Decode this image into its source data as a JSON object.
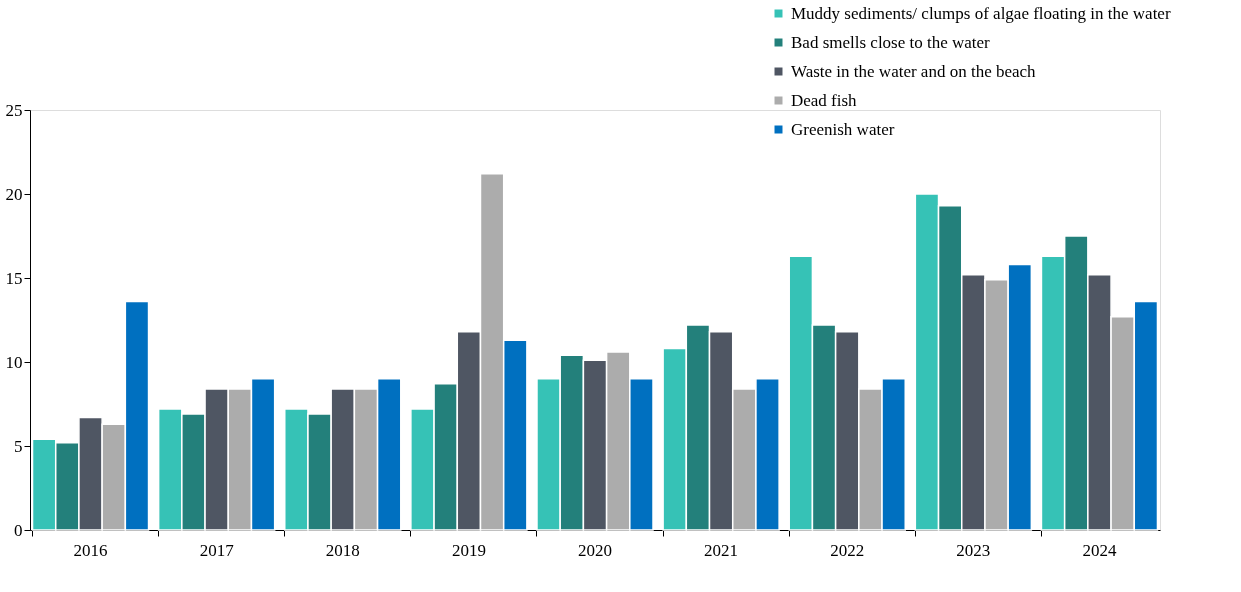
{
  "chart_data": {
    "type": "bar",
    "categories": [
      "2016",
      "2017",
      "2018",
      "2019",
      "2020",
      "2021",
      "2022",
      "2023",
      "2024"
    ],
    "series": [
      {
        "name": "Muddy sediments/ clumps of algae floating in the water",
        "color": "#36c2b6",
        "values": [
          5.4,
          7.2,
          7.2,
          7.2,
          9.0,
          10.8,
          16.3,
          20.0,
          16.3
        ]
      },
      {
        "name": "Bad smells close to the water",
        "color": "#23807b",
        "values": [
          5.2,
          6.9,
          6.9,
          8.7,
          10.4,
          12.2,
          12.2,
          19.3,
          17.5
        ]
      },
      {
        "name": "Waste in the water and on the beach",
        "color": "#4f5663",
        "values": [
          6.7,
          8.4,
          8.4,
          11.8,
          10.1,
          11.8,
          11.8,
          15.2,
          15.2
        ]
      },
      {
        "name": "Dead fish",
        "color": "#acacac",
        "values": [
          6.3,
          8.4,
          8.4,
          21.2,
          10.6,
          8.4,
          8.4,
          14.9,
          12.7
        ]
      },
      {
        "name": "Greenish water",
        "color": "#0070c0",
        "values": [
          13.6,
          9.0,
          9.0,
          11.3,
          9.0,
          9.0,
          9.0,
          15.8,
          13.6
        ]
      }
    ],
    "ylim": [
      0,
      25
    ],
    "yticks": [
      0,
      5,
      10,
      15,
      20,
      25
    ],
    "grid": false,
    "legend": "top right"
  }
}
